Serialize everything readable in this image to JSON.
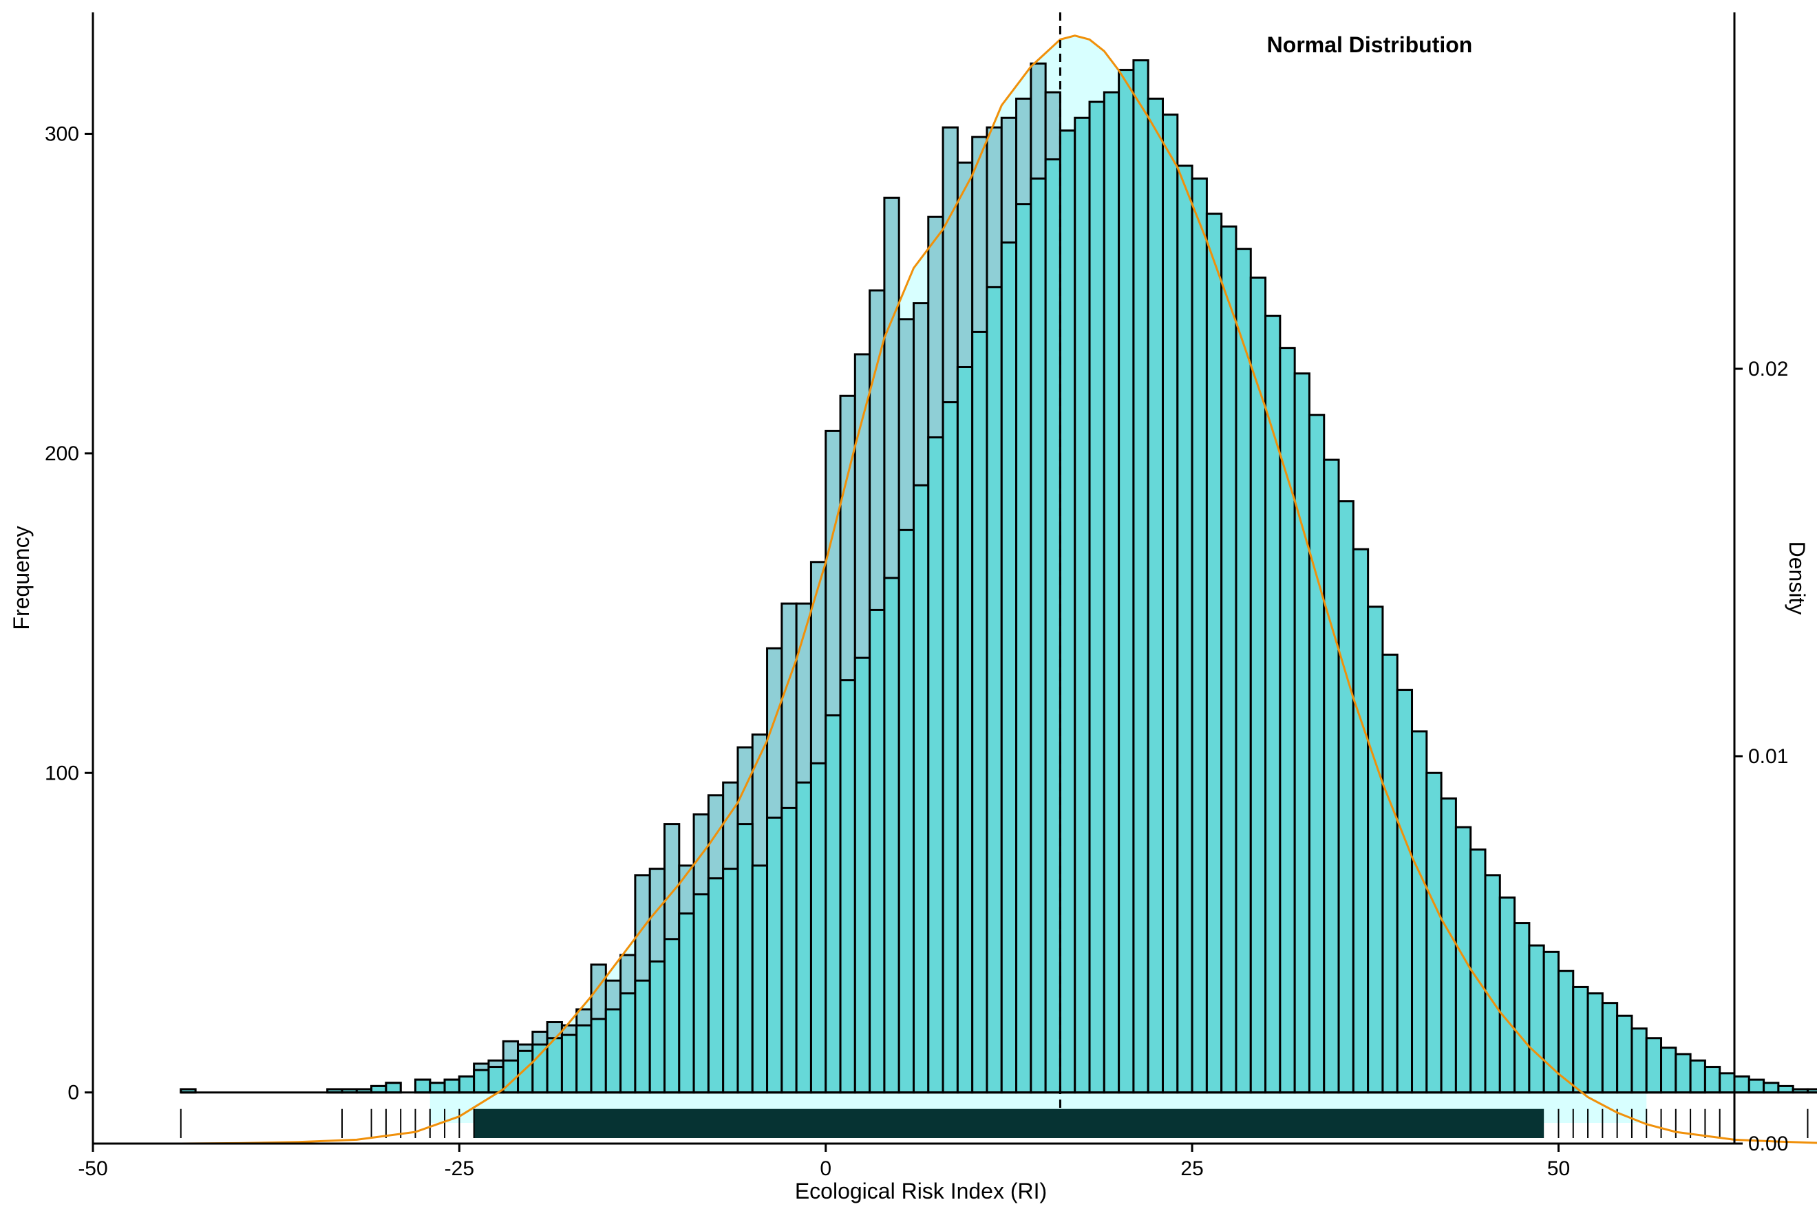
{
  "chart_data": {
    "type": "bar",
    "title": "Normal Distribution",
    "xlabel": "Ecological Risk Index (RI)",
    "ylabel": "Frequency",
    "y2label": "Density",
    "xlim": [
      -50,
      62
    ],
    "ylim": [
      -16,
      338
    ],
    "y2lim": [
      0,
      0.0292
    ],
    "x_ticks": [
      -50,
      -25,
      0,
      25,
      50
    ],
    "x_tick_labels": [
      "-50",
      "-25",
      "0",
      "25",
      "50"
    ],
    "y_ticks": [
      0,
      100,
      200,
      300
    ],
    "y_tick_labels": [
      "0",
      "100",
      "200",
      "300"
    ],
    "y2_ticks": [
      0,
      0.01,
      0.02
    ],
    "y2_tick_labels": [
      "0.00",
      "0.01",
      "0.02"
    ],
    "bin_width": 1,
    "bins_start": -44,
    "series": [
      {
        "kind": "histogram",
        "values": [
          1,
          0,
          0,
          0,
          0,
          0,
          0,
          0,
          0,
          0,
          1,
          1,
          1,
          2,
          3,
          0,
          4,
          3,
          4,
          5,
          7,
          8,
          10,
          13,
          15,
          17,
          18,
          21,
          23,
          26,
          31,
          35,
          41,
          48,
          56,
          62,
          67,
          70,
          84,
          71,
          86,
          89,
          97,
          103,
          118,
          129,
          136,
          151,
          161,
          176,
          190,
          205,
          216,
          227,
          238,
          252,
          266,
          278,
          286,
          292,
          301,
          305,
          310,
          313,
          320,
          323,
          311,
          306,
          290,
          286,
          275,
          271,
          264,
          255,
          243,
          233,
          225,
          212,
          198,
          185,
          170,
          152,
          137,
          126,
          113,
          100,
          92,
          83,
          76,
          68,
          61,
          53,
          46,
          44,
          38,
          33,
          31,
          28,
          24,
          20,
          17,
          14,
          12,
          10,
          8,
          6,
          5,
          4,
          3,
          2,
          1,
          1,
          0,
          0,
          0,
          0,
          0,
          0,
          0,
          1
        ],
        "values_note": "",
        "fill": "#66D8D8",
        "stroke": "#000000"
      },
      {
        "kind": "histogram-outline-overlay",
        "values": [
          1,
          0,
          0,
          0,
          0,
          0,
          0,
          0,
          0,
          0,
          1,
          1,
          1,
          2,
          3,
          0,
          4,
          3,
          4,
          5,
          9,
          10,
          16,
          15,
          19,
          22,
          21,
          26,
          40,
          35,
          43,
          68,
          70,
          84,
          71,
          87,
          93,
          97,
          108,
          112,
          139,
          153,
          153,
          166,
          207,
          218,
          231,
          251,
          280,
          242,
          247,
          274,
          302,
          291,
          299,
          302,
          305,
          311,
          322,
          313,
          301,
          273,
          297,
          286,
          231,
          240,
          252,
          229,
          199,
          180,
          177,
          148,
          130,
          122,
          110,
          93,
          84,
          76,
          67,
          61,
          49,
          47,
          38,
          36,
          33,
          22,
          24,
          25,
          17,
          17,
          12,
          8,
          10,
          8,
          8,
          5,
          3,
          3,
          2,
          2,
          2,
          0,
          0,
          1
        ],
        "fill": "#8FCFD6",
        "stroke": "#000000"
      }
    ],
    "density_curve": {
      "color": "#F0900A",
      "x": [
        -44,
        -40,
        -36,
        -32,
        -28,
        -25,
        -22,
        -20,
        -18,
        -16,
        -14,
        -12,
        -10,
        -8,
        -6,
        -4,
        -2,
        0,
        2,
        4,
        6,
        8,
        10,
        12,
        14,
        16,
        17,
        18,
        19,
        20,
        22,
        24,
        26,
        28,
        30,
        32,
        34,
        36,
        38,
        40,
        42,
        44,
        46,
        48,
        50,
        52,
        54,
        56,
        58,
        60,
        62,
        65,
        69
      ],
      "y": [
        0.0,
        1e-05,
        4e-05,
        0.0001,
        0.0003,
        0.0007,
        0.0014,
        0.0021,
        0.0029,
        0.0038,
        0.0048,
        0.0058,
        0.0067,
        0.0077,
        0.0088,
        0.0104,
        0.0125,
        0.015,
        0.018,
        0.0208,
        0.0226,
        0.0236,
        0.025,
        0.0268,
        0.0278,
        0.0285,
        0.0286,
        0.0285,
        0.0282,
        0.0277,
        0.0265,
        0.0252,
        0.0233,
        0.0212,
        0.019,
        0.0166,
        0.014,
        0.0115,
        0.0093,
        0.0074,
        0.0058,
        0.0045,
        0.0034,
        0.0025,
        0.0018,
        0.0012,
        0.0008,
        0.0005,
        0.0003,
        0.0002,
        0.0001,
        5e-05,
        0.0
      ]
    },
    "mean_line": {
      "x": 16,
      "style": "dashed",
      "color": "#000000"
    },
    "shaded_region": {
      "x_from": -27,
      "x_to": 56,
      "color": "#D8FFFF"
    },
    "rug": {
      "color": "#063333",
      "dense_from": -24,
      "dense_to": 49,
      "sparse_x": [
        -44,
        -33,
        -31,
        -30,
        -29,
        -28,
        -27,
        -26,
        -25,
        -24,
        50,
        51,
        52,
        53,
        54,
        55,
        56,
        57,
        58,
        59,
        60,
        61,
        62,
        67
      ]
    },
    "grid": false,
    "legend": "none",
    "annotation": "Normal Distribution",
    "annotation_placement": "top-right"
  }
}
